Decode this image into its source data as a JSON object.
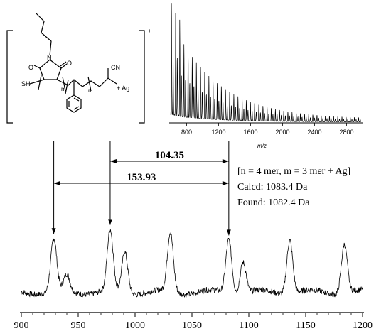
{
  "structure": {
    "n_label": "n",
    "m_label": "m",
    "n_repeat_label": "n",
    "sh_label": "SH",
    "o_label_left": "O",
    "o_label_right": "O",
    "n_atom_label": "N",
    "cn_label": "CN",
    "ag_label": "+ Ag",
    "charge": "+"
  },
  "annotation": {
    "line1_text": "[n = 4 mer, m = 3 mer + Ag]",
    "line1_charge": "+",
    "line2_text": "Calcd: 1083.4 Da",
    "line3_text": "Found: 1082.4 Da"
  },
  "distances": [
    {
      "label": "104.35",
      "from": 978.1,
      "to": 1082.4
    },
    {
      "label": "153.93",
      "from": 928.5,
      "to": 1082.4
    }
  ],
  "chart_data": [
    {
      "type": "line",
      "title": "",
      "xlabel": "",
      "ylabel": "",
      "xlim": [
        900,
        1200
      ],
      "ylim": [
        0,
        1
      ],
      "x_ticks": [
        900,
        950,
        1000,
        1050,
        1100,
        1150,
        1200
      ],
      "grid": false,
      "peaks": [
        {
          "x": 928.5,
          "height": 0.64
        },
        {
          "x": 940,
          "height": 0.2
        },
        {
          "x": 978.1,
          "height": 0.74
        },
        {
          "x": 991,
          "height": 0.5
        },
        {
          "x": 1031,
          "height": 0.72
        },
        {
          "x": 1082.4,
          "height": 0.66
        },
        {
          "x": 1095,
          "height": 0.38
        },
        {
          "x": 1136,
          "height": 0.66
        },
        {
          "x": 1184,
          "height": 0.6
        }
      ],
      "arrows_at": [
        928.5,
        978.1,
        1082.4
      ]
    },
    {
      "type": "line",
      "title": "",
      "xlabel": "m/z",
      "ylabel": "",
      "xlim": [
        600,
        3000
      ],
      "ylim": [
        0,
        1
      ],
      "x_ticks": [
        800,
        1200,
        1600,
        2000,
        2400,
        2800
      ],
      "grid": false,
      "envelope": {
        "x_start": 600,
        "x_end": 2980,
        "max_height": 1.0,
        "end_height": 0.03,
        "spacing": 52
      }
    }
  ]
}
